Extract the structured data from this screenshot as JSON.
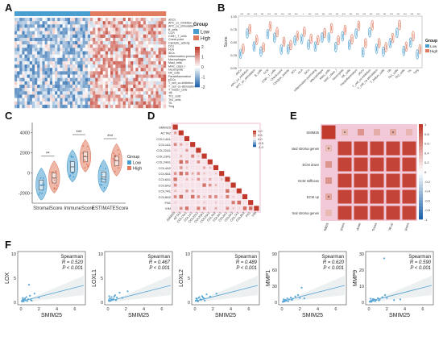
{
  "panels": {
    "A": {
      "letter": "A",
      "legend_title": "Group",
      "groups": [
        "Low",
        "High"
      ],
      "scale_ticks": [
        "2",
        "1",
        "0",
        "-1",
        "-2"
      ],
      "rows": [
        "aDCs",
        "APC_co_inhibition",
        "APC_co_stimulation",
        "B_cells",
        "CCR",
        "CD8+_T_cells",
        "Check-point",
        "Cytolytic_activity",
        "DCs",
        "HLA",
        "iDCs",
        "Inflammation-promoting",
        "Macrophages",
        "Mast_cells",
        "MHC_class_I",
        "Neutrophils",
        "NK_cells",
        "Parainflammation",
        "pDCs",
        "T_cell_co-inhibition",
        "T_cell_co-stimulation",
        "T_helper_cells",
        "Tfh",
        "Th1_cells",
        "Th2_cells",
        "TIL",
        "Treg"
      ]
    },
    "B": {
      "letter": "B",
      "ylabel": "Score",
      "legend_title": "Group",
      "groups": [
        "Low",
        "High"
      ],
      "ytick_labels": [
        "1.00",
        "0.75",
        "0.50",
        "0.25",
        "0.00"
      ],
      "categories": [
        "aDCs",
        "APC_co_inhibition",
        "APC_co_stimulation",
        "B_cells",
        "CCR",
        "CD8+_T_cells",
        "Check-point",
        "Cytolytic_activity",
        "DCs",
        "HLA",
        "iDCs",
        "Inflammation-promoting",
        "Macrophages",
        "Mast_cells",
        "MHC_class_I",
        "Neutrophils",
        "NK_cells",
        "Parainflammation",
        "pDCs",
        "T_cell_co-inhibition",
        "T_cell_co-stimulation",
        "T_helper_cells",
        "Tfh",
        "Th1_cells",
        "Th2_cells",
        "TIL",
        "Treg"
      ],
      "sig": [
        "***",
        "***",
        "***",
        "***",
        "***",
        "***",
        "***",
        "***",
        "***",
        "*",
        "***",
        "***",
        "***",
        "***",
        "***",
        "***",
        "***",
        "***",
        "***",
        "***",
        "***",
        "***",
        "***",
        "***",
        "***",
        "***",
        "***"
      ]
    },
    "C": {
      "letter": "C",
      "legend_title": "Group",
      "groups": [
        "Low",
        "High"
      ],
      "categories": [
        "StromalScore",
        "ImmuneScore",
        "ESTIMATEScore"
      ],
      "ytick_labels": [
        "4000",
        "2000",
        "0",
        "-2000"
      ],
      "sig": [
        "**",
        "***",
        "***"
      ]
    },
    "D": {
      "letter": "D",
      "genes": [
        "SMIM25",
        "ACTA2",
        "COL14A1",
        "COL1A1",
        "COL22A1",
        "COL23A1",
        "COL24A1",
        "COL4A2",
        "COL5A1",
        "COL6A1",
        "COL6A2",
        "COL7A1",
        "COL8A2",
        "FN1",
        "VIM"
      ],
      "scale_ticks": [
        "1.0",
        "0.5",
        "0.0",
        "-0.5",
        "-1.0"
      ]
    },
    "E": {
      "letter": "E",
      "rows": [
        "SMIM25",
        "Activated stroma genes",
        "ECM down",
        "ECM stiffness",
        "ECM up",
        "Normal stroma genes"
      ],
      "cols": [
        "SMIM25",
        "Activated stroma genes",
        "ECM down",
        "ECM stiffness",
        "ECM up",
        "Normal stroma genes"
      ],
      "scale_ticks": [
        "1",
        "0.8",
        "0.6",
        "0.4",
        "0.2",
        "0",
        "-0.2",
        "-0.4",
        "-0.6",
        "-0.8",
        "-1"
      ]
    },
    "F": {
      "letter": "F",
      "plots": [
        {
          "ylabel": "LOX",
          "xlabel": "SMIM25",
          "method": "Spearman",
          "r_text": "R = 0.520",
          "p_text": "P < 0.001",
          "xticks": [
            "0",
            "2",
            "4",
            "6"
          ],
          "yticks": [
            "10",
            "5",
            "0"
          ],
          "points": [
            [
              0.1,
              0.3
            ],
            [
              0.2,
              0.6
            ],
            [
              0.3,
              0.2
            ],
            [
              0.4,
              0.8
            ],
            [
              0.5,
              0.5
            ],
            [
              0.6,
              1.2
            ],
            [
              0.8,
              0.7
            ],
            [
              1.0,
              1.5
            ],
            [
              1.2,
              0.4
            ],
            [
              1.5,
              2.0
            ],
            [
              0.2,
              1.0
            ],
            [
              0.7,
              0.3
            ],
            [
              2.0,
              1.1
            ],
            [
              0.9,
              4.0
            ],
            [
              0.3,
              0.5
            ],
            [
              0.15,
              0.2
            ],
            [
              0.45,
              0.9
            ],
            [
              1.1,
              0.6
            ]
          ]
        },
        {
          "ylabel": "LOXL1",
          "xlabel": "SMIM25",
          "method": "Spearman",
          "r_text": "R = 0.467",
          "p_text": "P < 0.001",
          "xticks": [
            "0",
            "2",
            "4",
            "6"
          ],
          "yticks": [
            "10",
            "5",
            "0"
          ],
          "points": [
            [
              0.1,
              0.5
            ],
            [
              0.2,
              0.9
            ],
            [
              0.3,
              0.4
            ],
            [
              0.4,
              1.2
            ],
            [
              0.6,
              0.8
            ],
            [
              0.8,
              1.6
            ],
            [
              1.0,
              1.1
            ],
            [
              1.3,
              2.2
            ],
            [
              0.2,
              0.3
            ],
            [
              0.5,
              0.6
            ],
            [
              0.7,
              1.3
            ],
            [
              1.6,
              1.0
            ],
            [
              2.2,
              2.5
            ],
            [
              0.35,
              0.7
            ],
            [
              0.9,
              0.5
            ],
            [
              0.15,
              1.4
            ]
          ]
        },
        {
          "ylabel": "LOXL2",
          "xlabel": "SMIM25",
          "method": "Spearman",
          "r_text": "R = 0.489",
          "p_text": "P < 0.001",
          "xticks": [
            "0",
            "2",
            "4",
            "6"
          ],
          "yticks": [
            "10",
            "5",
            "0"
          ],
          "points": [
            [
              0.1,
              0.4
            ],
            [
              0.2,
              0.8
            ],
            [
              0.3,
              0.3
            ],
            [
              0.4,
              1.0
            ],
            [
              0.6,
              0.7
            ],
            [
              0.8,
              1.4
            ],
            [
              1.0,
              0.9
            ],
            [
              1.3,
              1.8
            ],
            [
              0.25,
              0.5
            ],
            [
              0.5,
              1.2
            ],
            [
              0.7,
              0.6
            ],
            [
              1.7,
              1.3
            ],
            [
              2.4,
              2.0
            ],
            [
              0.35,
              0.2
            ],
            [
              0.9,
              1.1
            ],
            [
              0.15,
              0.9
            ],
            [
              1.1,
              0.4
            ]
          ]
        },
        {
          "ylabel": "MMP1",
          "xlabel": "SMIM25",
          "method": "Spearman",
          "r_text": "R = 0.620",
          "p_text": "P < 0.001",
          "xticks": [
            "0",
            "2",
            "4",
            "6"
          ],
          "yticks": [
            "90",
            "60",
            "30",
            "0"
          ],
          "points": [
            [
              0.1,
              1
            ],
            [
              0.2,
              3
            ],
            [
              0.3,
              2
            ],
            [
              0.4,
              5
            ],
            [
              0.5,
              4
            ],
            [
              0.6,
              8
            ],
            [
              0.8,
              6
            ],
            [
              1.0,
              10
            ],
            [
              1.2,
              7
            ],
            [
              1.5,
              12
            ],
            [
              0.2,
              6
            ],
            [
              0.7,
              2
            ],
            [
              2.0,
              9
            ],
            [
              2.2,
              30
            ],
            [
              0.3,
              4
            ],
            [
              0.15,
              1
            ],
            [
              0.45,
              3
            ],
            [
              1.1,
              5
            ],
            [
              1.8,
              15
            ],
            [
              2.5,
              8
            ]
          ]
        },
        {
          "ylabel": "MMP9",
          "xlabel": "SMIM25",
          "method": "Spearman",
          "r_text": "R = 0.590",
          "p_text": "P < 0.001",
          "xticks": [
            "0",
            "2",
            "4",
            "6"
          ],
          "yticks": [
            "30",
            "20",
            "10",
            "0"
          ],
          "points": [
            [
              0.1,
              0.5
            ],
            [
              0.2,
              1.0
            ],
            [
              0.3,
              0.4
            ],
            [
              0.4,
              1.6
            ],
            [
              0.5,
              1.2
            ],
            [
              0.6,
              2.0
            ],
            [
              0.8,
              1.5
            ],
            [
              1.0,
              2.8
            ],
            [
              1.2,
              1.8
            ],
            [
              1.5,
              3.5
            ],
            [
              0.2,
              2.5
            ],
            [
              0.7,
              0.8
            ],
            [
              2.0,
              3.0
            ],
            [
              1.8,
              5.0
            ],
            [
              0.3,
              1.1
            ],
            [
              0.15,
              0.3
            ],
            [
              0.45,
              2.2
            ],
            [
              1.1,
              1.3
            ],
            [
              2.8,
              1.5
            ],
            [
              3.5,
              2.0
            ],
            [
              1.7,
              30.0
            ]
          ]
        }
      ]
    }
  },
  "colors": {
    "low": "#4a9ecf",
    "high": "#e07b60",
    "heat_high": "#c0392b",
    "heat_low": "#2166ac",
    "panel_border": "#f1c9d8",
    "fit_line": "#5aa7d6"
  }
}
